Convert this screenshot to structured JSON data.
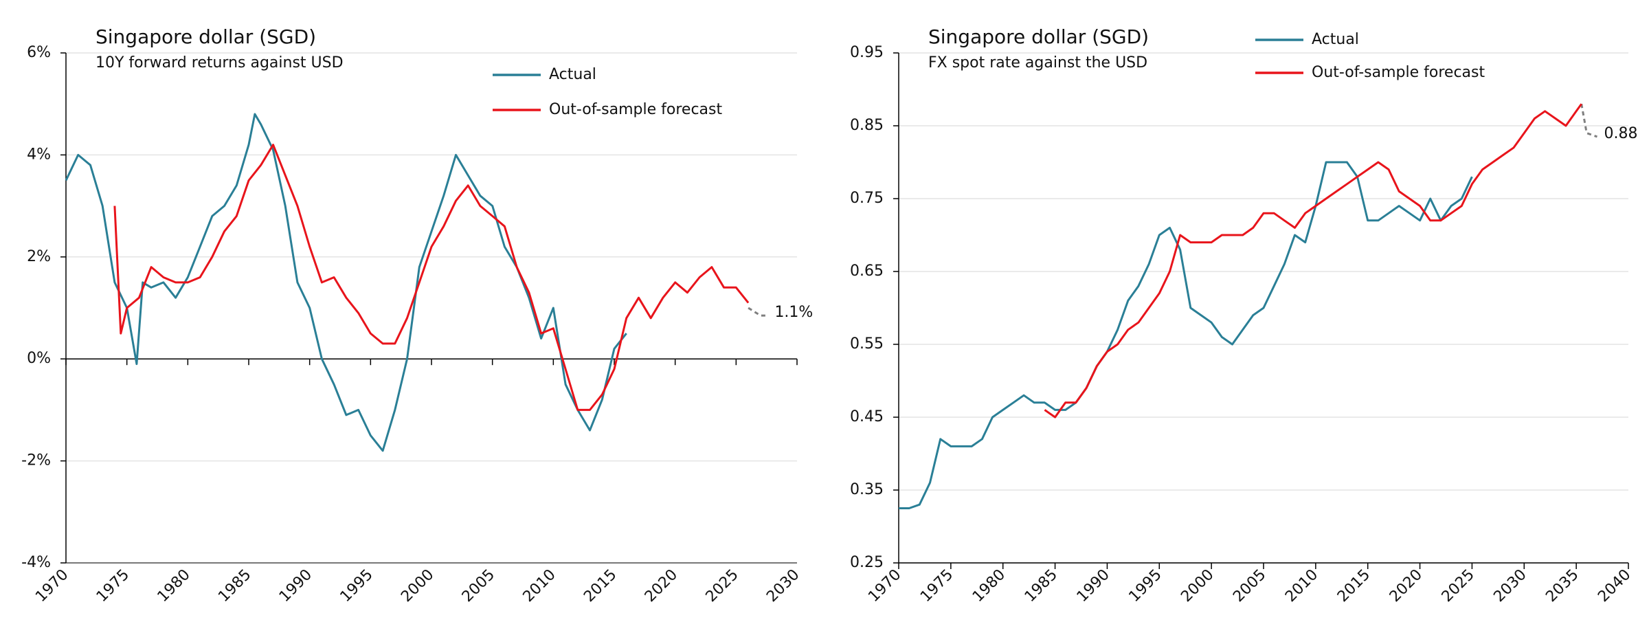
{
  "chart_data": [
    {
      "type": "line",
      "title": "Singapore dollar (SGD)",
      "subtitle": "10Y forward returns against USD",
      "xlim": [
        1970,
        2030
      ],
      "xticks": [
        1970,
        1975,
        1980,
        1985,
        1990,
        1995,
        2000,
        2005,
        2010,
        2015,
        2020,
        2025,
        2030
      ],
      "ylim": [
        -4,
        6
      ],
      "yticks": [
        {
          "value": -4,
          "label": "-4%"
        },
        {
          "value": -2,
          "label": "-2%"
        },
        {
          "value": 0,
          "label": "0%"
        },
        {
          "value": 2,
          "label": "2%"
        },
        {
          "value": 4,
          "label": "4%"
        },
        {
          "value": 6,
          "label": "6%"
        }
      ],
      "grid": true,
      "series": [
        {
          "name": "Actual",
          "color": "#2a7f96",
          "x": [
            1970,
            1971,
            1972,
            1973,
            1974,
            1975,
            1975.8,
            1976.3,
            1977,
            1978,
            1979,
            1980,
            1981,
            1982,
            1983,
            1984,
            1985,
            1985.5,
            1986,
            1987,
            1988,
            1989,
            1990,
            1991,
            1992,
            1993,
            1994,
            1995,
            1996,
            1997,
            1998,
            1999,
            2000,
            2001,
            2002,
            2003,
            2004,
            2005,
            2006,
            2007,
            2008,
            2009,
            2010,
            2011,
            2012,
            2013,
            2014,
            2015,
            2016
          ],
          "values": [
            3.5,
            4.0,
            3.8,
            3.0,
            1.5,
            1.0,
            -0.1,
            1.5,
            1.4,
            1.5,
            1.2,
            1.6,
            2.2,
            2.8,
            3.0,
            3.4,
            4.2,
            4.8,
            4.6,
            4.1,
            3.0,
            1.5,
            1.0,
            0.0,
            -0.5,
            -1.1,
            -1.0,
            -1.5,
            -1.8,
            -1.0,
            0.0,
            1.8,
            2.5,
            3.2,
            4.0,
            3.6,
            3.2,
            3.0,
            2.2,
            1.8,
            1.2,
            0.4,
            1.0,
            -0.5,
            -1.0,
            -1.4,
            -0.8,
            0.2,
            0.5
          ]
        },
        {
          "name": "Out-of-sample forecast",
          "color": "#e8141b",
          "x": [
            1974,
            1974.5,
            1975,
            1976,
            1977,
            1978,
            1979,
            1980,
            1981,
            1982,
            1983,
            1984,
            1985,
            1986,
            1987,
            1988,
            1989,
            1990,
            1991,
            1992,
            1993,
            1994,
            1995,
            1996,
            1997,
            1998,
            1999,
            2000,
            2001,
            2002,
            2003,
            2004,
            2005,
            2006,
            2007,
            2008,
            2009,
            2010,
            2011,
            2012,
            2013,
            2014,
            2015,
            2016,
            2017,
            2018,
            2019,
            2020,
            2021,
            2022,
            2023,
            2024,
            2025,
            2026
          ],
          "values": [
            3.0,
            0.5,
            1.0,
            1.2,
            1.8,
            1.6,
            1.5,
            1.5,
            1.6,
            2.0,
            2.5,
            2.8,
            3.5,
            3.8,
            4.2,
            3.6,
            3.0,
            2.2,
            1.5,
            1.6,
            1.2,
            0.9,
            0.5,
            0.3,
            0.3,
            0.8,
            1.5,
            2.2,
            2.6,
            3.1,
            3.4,
            3.0,
            2.8,
            2.6,
            1.8,
            1.3,
            0.5,
            0.6,
            -0.2,
            -1.0,
            -1.0,
            -0.7,
            -0.2,
            0.8,
            1.2,
            0.8,
            1.2,
            1.5,
            1.3,
            1.6,
            1.8,
            1.4,
            1.4,
            1.1
          ]
        }
      ],
      "projection": {
        "color": "#7f7f7f",
        "x": [
          2026,
          2027,
          2027.6
        ],
        "values": [
          1.0,
          0.85,
          0.85
        ]
      },
      "end_label": {
        "text": "1.1%",
        "value": 1.1,
        "color": "#e8141b"
      }
    },
    {
      "type": "line",
      "title": "Singapore dollar (SGD)",
      "subtitle": "FX spot rate against the USD",
      "xlim": [
        1970,
        2040
      ],
      "xticks": [
        1970,
        1975,
        1980,
        1985,
        1990,
        1995,
        2000,
        2005,
        2010,
        2015,
        2020,
        2025,
        2030,
        2035,
        2040
      ],
      "ylim": [
        0.25,
        0.95
      ],
      "yticks": [
        0.25,
        0.35,
        0.45,
        0.55,
        0.65,
        0.75,
        0.85,
        0.95
      ],
      "grid": true,
      "series": [
        {
          "name": "Actual",
          "color": "#2a7f96",
          "x": [
            1970,
            1971,
            1972,
            1973,
            1974,
            1975,
            1976,
            1977,
            1978,
            1979,
            1980,
            1981,
            1982,
            1983,
            1984,
            1985,
            1986,
            1987,
            1988,
            1989,
            1990,
            1991,
            1992,
            1993,
            1994,
            1995,
            1996,
            1997,
            1998,
            1999,
            2000,
            2001,
            2002,
            2003,
            2004,
            2005,
            2006,
            2007,
            2008,
            2009,
            2010,
            2011,
            2012,
            2013,
            2014,
            2015,
            2016,
            2017,
            2018,
            2019,
            2020,
            2021,
            2022,
            2023,
            2024,
            2025
          ],
          "values": [
            0.325,
            0.325,
            0.33,
            0.36,
            0.42,
            0.41,
            0.41,
            0.41,
            0.42,
            0.45,
            0.46,
            0.47,
            0.48,
            0.47,
            0.47,
            0.46,
            0.46,
            0.47,
            0.49,
            0.52,
            0.54,
            0.57,
            0.61,
            0.63,
            0.66,
            0.7,
            0.71,
            0.68,
            0.6,
            0.59,
            0.58,
            0.56,
            0.55,
            0.57,
            0.59,
            0.6,
            0.63,
            0.66,
            0.7,
            0.69,
            0.74,
            0.8,
            0.8,
            0.8,
            0.78,
            0.72,
            0.72,
            0.73,
            0.74,
            0.73,
            0.72,
            0.75,
            0.72,
            0.74,
            0.75,
            0.78
          ]
        },
        {
          "name": "Out-of-sample forecast",
          "color": "#e8141b",
          "x": [
            1984,
            1985,
            1986,
            1987,
            1988,
            1989,
            1990,
            1991,
            1992,
            1993,
            1994,
            1995,
            1996,
            1997,
            1998,
            1999,
            2000,
            2001,
            2002,
            2003,
            2004,
            2005,
            2006,
            2007,
            2008,
            2009,
            2010,
            2011,
            2012,
            2013,
            2014,
            2015,
            2016,
            2017,
            2018,
            2019,
            2020,
            2021,
            2022,
            2023,
            2024,
            2025,
            2026,
            2027,
            2028,
            2029,
            2030,
            2031,
            2032,
            2033,
            2034,
            2035,
            2035.5
          ],
          "values": [
            0.46,
            0.45,
            0.47,
            0.47,
            0.49,
            0.52,
            0.54,
            0.55,
            0.57,
            0.58,
            0.6,
            0.62,
            0.65,
            0.7,
            0.69,
            0.69,
            0.69,
            0.7,
            0.7,
            0.7,
            0.71,
            0.73,
            0.73,
            0.72,
            0.71,
            0.73,
            0.74,
            0.75,
            0.76,
            0.77,
            0.78,
            0.79,
            0.8,
            0.79,
            0.76,
            0.75,
            0.74,
            0.72,
            0.72,
            0.73,
            0.74,
            0.77,
            0.79,
            0.8,
            0.81,
            0.82,
            0.84,
            0.86,
            0.87,
            0.86,
            0.85,
            0.87,
            0.88
          ]
        }
      ],
      "projection": {
        "color": "#7f7f7f",
        "x": [
          2035.5,
          2036,
          2037
        ],
        "values": [
          0.88,
          0.84,
          0.835
        ]
      },
      "end_label": {
        "text": "0.88",
        "value": 0.88,
        "color": "#e8141b"
      }
    }
  ]
}
